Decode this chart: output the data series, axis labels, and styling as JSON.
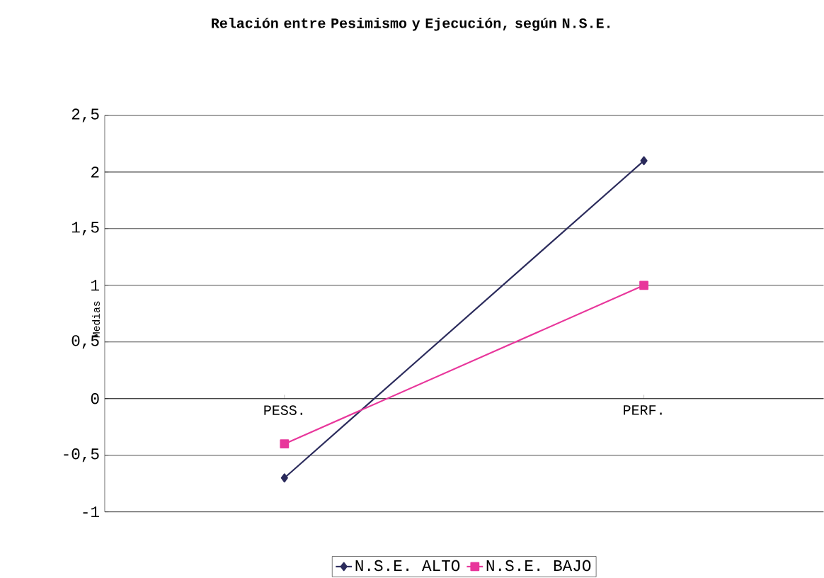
{
  "chart_data": {
    "type": "line",
    "title": "Relación entre Pesimismo y Ejecución, según N.S.E.",
    "ylabel": "Medias",
    "categories": [
      "PESS.",
      "PERF."
    ],
    "series": [
      {
        "name": "N.S.E. ALTO",
        "color": "#2b2b5c",
        "values": [
          -0.7,
          2.1
        ],
        "marker": "diamond"
      },
      {
        "name": "N.S.E. BAJO",
        "color": "#e8369b",
        "values": [
          -0.4,
          1.0
        ],
        "marker": "square"
      }
    ],
    "ylim": [
      -1,
      2.5
    ],
    "yticks": [
      -1,
      {
        "value": -0.5,
        "label": "-0,5"
      },
      0,
      {
        "value": 0.5,
        "label": "0,5"
      },
      1,
      {
        "value": 1.5,
        "label": "1,5"
      },
      2,
      {
        "value": 2.5,
        "label": "2,5"
      }
    ],
    "grid": "y",
    "legend": "bottom",
    "line_style": "solid"
  }
}
